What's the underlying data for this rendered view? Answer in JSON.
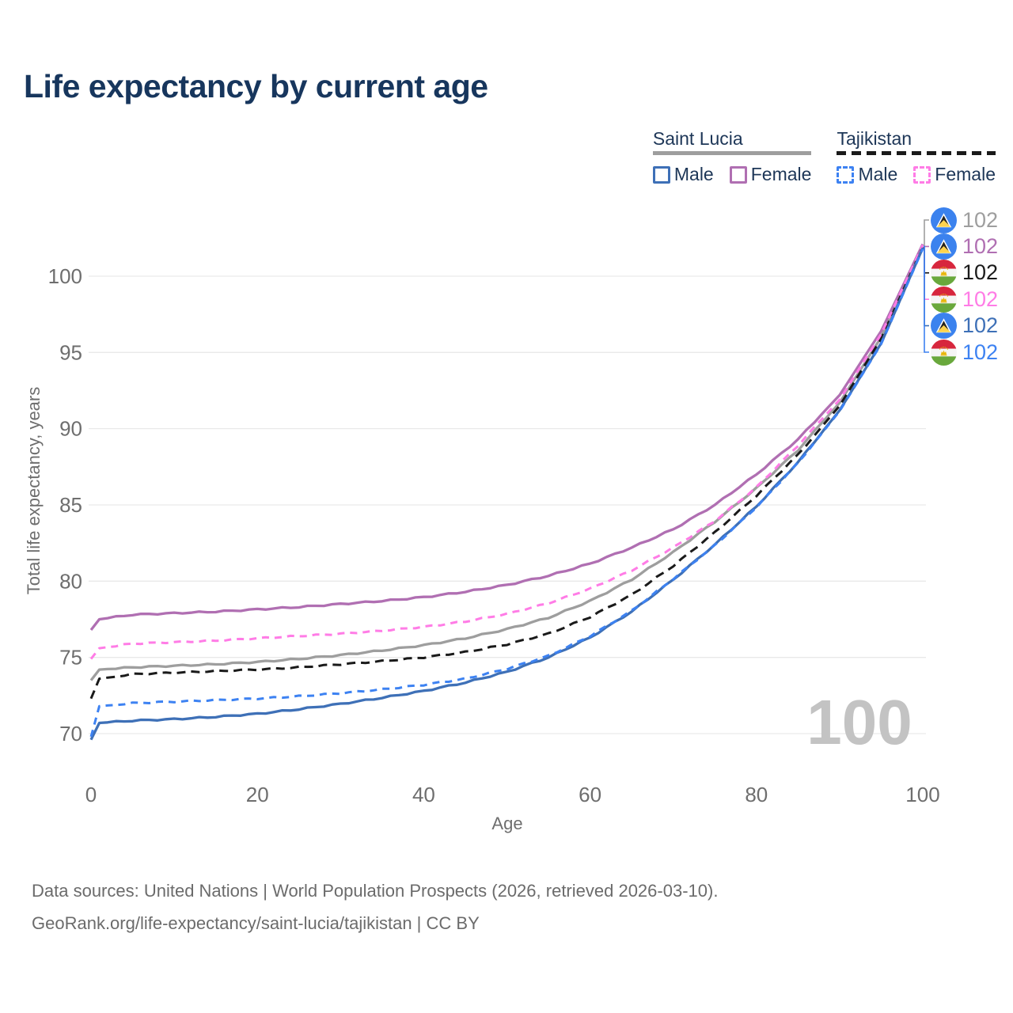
{
  "title": "Life expectancy by current age",
  "watermark": "100",
  "legend": {
    "groups": [
      {
        "title": "Saint Lucia",
        "line_style": "solid",
        "underline_color": "#9e9e9e",
        "items": [
          {
            "label": "Male",
            "color": "#3e70b7",
            "dashed": false
          },
          {
            "label": "Female",
            "color": "#b06fb2",
            "dashed": false
          }
        ]
      },
      {
        "title": "Tajikistan",
        "line_style": "dashed",
        "underline_color": "#1a1a1a",
        "items": [
          {
            "label": "Male",
            "color": "#3d82f2",
            "dashed": true
          },
          {
            "label": "Female",
            "color": "#ff7ce6",
            "dashed": true
          }
        ]
      }
    ]
  },
  "footer": {
    "line1": "Data sources: United Nations | World Population Prospects (2026, retrieved 2026-03-10).",
    "line2": "GeoRank.org/life-expectancy/saint-lucia/tajikistan | CC BY"
  },
  "chart_data": {
    "type": "line",
    "title": "Life expectancy by current age",
    "xlabel": "Age",
    "ylabel": "Total life expectancy, years",
    "x_ticks": [
      0,
      20,
      40,
      60,
      80,
      100
    ],
    "y_ticks": [
      70,
      75,
      80,
      85,
      90,
      95,
      100
    ],
    "xlim": [
      0,
      100
    ],
    "ylim": [
      69,
      103
    ],
    "grid": "horizontal-only",
    "gridline_color": "#e9e9e9",
    "ages": [
      0,
      1,
      5,
      10,
      15,
      20,
      25,
      30,
      35,
      40,
      45,
      50,
      55,
      60,
      65,
      70,
      75,
      80,
      85,
      90,
      95,
      100
    ],
    "series": [
      {
        "name": "Saint Lucia (both sexes)",
        "country": "saint-lucia",
        "sex": "total",
        "color": "#9e9e9e",
        "dashed": false,
        "end_label": "102",
        "values": [
          73.5,
          74.2,
          74.35,
          74.45,
          74.55,
          74.7,
          74.9,
          75.15,
          75.45,
          75.8,
          76.25,
          76.85,
          77.6,
          78.7,
          80.1,
          81.9,
          83.9,
          86.1,
          88.6,
          91.7,
          96.0,
          101.95
        ]
      },
      {
        "name": "Saint Lucia Female",
        "country": "saint-lucia",
        "sex": "female",
        "color": "#b06fb2",
        "dashed": false,
        "end_label": "102",
        "values": [
          76.8,
          77.5,
          77.8,
          77.9,
          78.0,
          78.15,
          78.3,
          78.5,
          78.7,
          78.95,
          79.3,
          79.75,
          80.35,
          81.15,
          82.2,
          83.4,
          85.0,
          87.0,
          89.3,
          92.2,
          96.4,
          102.1
        ]
      },
      {
        "name": "Tajikistan (both sexes)",
        "country": "tajikistan",
        "sex": "total",
        "color": "#1a1a1a",
        "dashed": true,
        "end_label": "102",
        "values": [
          72.3,
          73.6,
          73.9,
          74.0,
          74.1,
          74.2,
          74.35,
          74.55,
          74.75,
          75.0,
          75.35,
          75.85,
          76.55,
          77.65,
          79.1,
          81.0,
          83.2,
          85.6,
          88.3,
          91.5,
          95.9,
          101.9
        ]
      },
      {
        "name": "Tajikistan Female",
        "country": "tajikistan",
        "sex": "female",
        "color": "#ff7ce6",
        "dashed": true,
        "end_label": "102",
        "values": [
          74.9,
          75.6,
          75.9,
          76.0,
          76.1,
          76.25,
          76.4,
          76.55,
          76.75,
          77.0,
          77.35,
          77.85,
          78.55,
          79.5,
          80.7,
          82.2,
          83.95,
          86.15,
          88.9,
          91.9,
          96.2,
          102.05
        ]
      },
      {
        "name": "Saint Lucia Male",
        "country": "saint-lucia",
        "sex": "male",
        "color": "#3e70b7",
        "dashed": false,
        "end_label": "102",
        "values": [
          69.6,
          70.7,
          70.85,
          70.95,
          71.1,
          71.3,
          71.6,
          71.95,
          72.35,
          72.8,
          73.35,
          74.05,
          75.0,
          76.3,
          78.0,
          80.1,
          82.4,
          84.9,
          87.8,
          91.2,
          95.6,
          101.85
        ]
      },
      {
        "name": "Tajikistan Male",
        "country": "tajikistan",
        "sex": "male",
        "color": "#3d82f2",
        "dashed": true,
        "end_label": "102",
        "values": [
          69.8,
          71.8,
          72.0,
          72.1,
          72.2,
          72.3,
          72.45,
          72.65,
          72.9,
          73.2,
          73.6,
          74.25,
          75.1,
          76.4,
          78.05,
          80.15,
          82.35,
          84.85,
          87.75,
          91.15,
          95.55,
          101.8
        ]
      }
    ],
    "flag_colors": {
      "saint_lucia_circle": "#3b82ee",
      "saint_lucia_white": "#ffffff",
      "saint_lucia_black": "#26241f",
      "saint_lucia_yellow": "#ffd34d",
      "tajikistan_red": "#d7263d",
      "tajikistan_white": "#f5f5f5",
      "tajikistan_green": "#69a83c",
      "tajikistan_crown": "#e8b70a"
    }
  }
}
